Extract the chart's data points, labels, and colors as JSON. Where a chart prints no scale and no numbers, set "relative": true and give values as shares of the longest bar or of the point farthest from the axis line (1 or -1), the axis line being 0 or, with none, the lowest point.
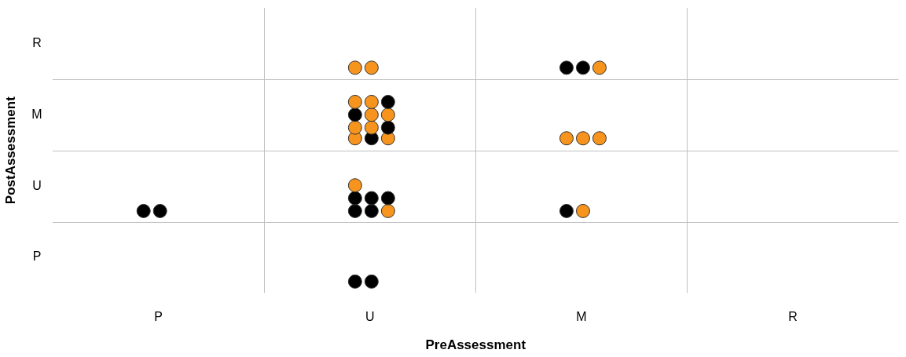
{
  "chart_data": {
    "type": "scatter",
    "xlabel": "PreAssessment",
    "ylabel": "PostAssessment",
    "categories": [
      "P",
      "U",
      "M",
      "R"
    ],
    "y_categories": [
      "R",
      "M",
      "U",
      "P"
    ],
    "relative": true,
    "grid": true,
    "legend": false,
    "marker": "circle",
    "series": [
      {
        "x": [
          "U",
          "U",
          "M",
          "M",
          "M",
          "U",
          "U",
          "U",
          "U",
          "U",
          "U",
          "U",
          "U",
          "U",
          "U",
          "U",
          "U",
          "M",
          "M",
          "M",
          "P",
          "P",
          "U",
          "U",
          "U",
          "U",
          "U",
          "U",
          "U",
          "M",
          "M",
          "U",
          "U"
        ],
        "values": [
          1,
          1,
          1,
          1,
          1,
          0.67,
          0.67,
          0.67,
          0.72,
          0.72,
          0.72,
          0.78,
          0.78,
          0.78,
          0.84,
          0.84,
          0.84,
          0.67,
          0.67,
          0.67,
          0.33,
          0.33,
          0.33,
          0.33,
          0.33,
          0.39,
          0.39,
          0.39,
          0.45,
          0.33,
          0.33,
          0,
          0
        ],
        "colors": [
          "#f7941d",
          "#f7941d",
          "#000000",
          "#000000",
          "#f7941d",
          "#f7941d",
          "#000000",
          "#f7941d",
          "#f7941d",
          "#f7941d",
          "#000000",
          "#000000",
          "#f7941d",
          "#f7941d",
          "#f7941d",
          "#f7941d",
          "#000000",
          "#f7941d",
          "#f7941d",
          "#f7941d",
          "#000000",
          "#000000",
          "#000000",
          "#000000",
          "#f7941d",
          "#000000",
          "#000000",
          "#000000",
          "#f7941d",
          "#000000",
          "#f7941d",
          "#000000",
          "#000000"
        ]
      }
    ]
  }
}
